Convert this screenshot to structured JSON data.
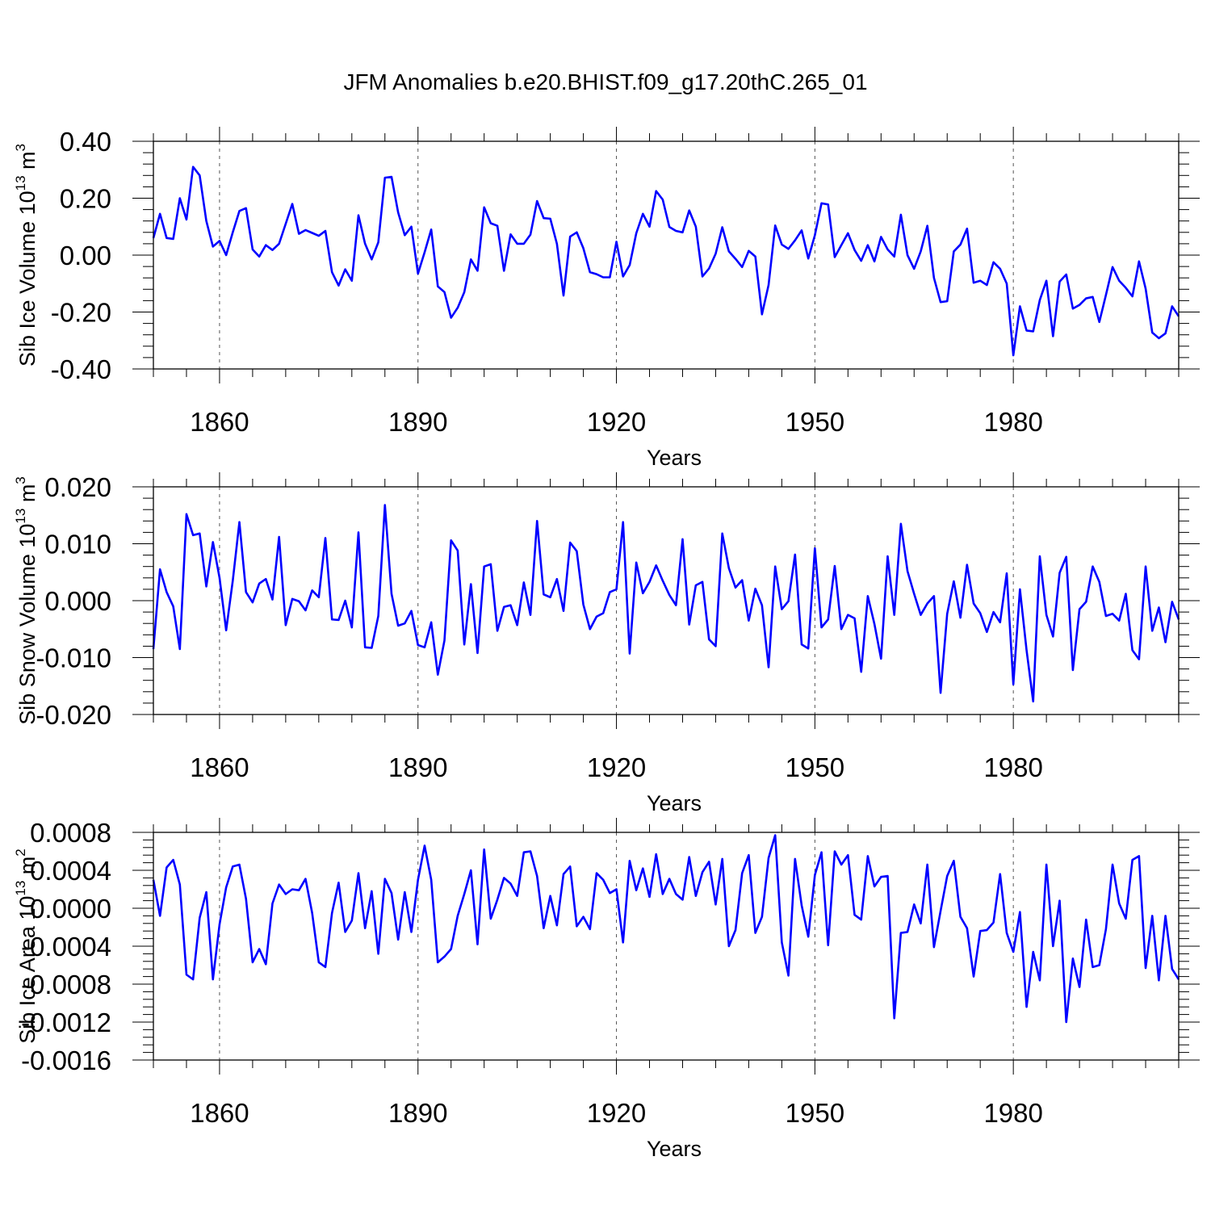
{
  "title": "JFM Anomalies b.e20.BHIST.f09_g17.20thC.265_01",
  "colors": {
    "series": "#0000ff",
    "axis": "#000000",
    "grid": "#555555"
  },
  "chart_data": [
    {
      "type": "line",
      "name": "ice-volume",
      "ylabel_main": "Sib Ice Volume 10",
      "ylabel_exp": "13",
      "ylabel_unit": " m",
      "ylabel_unit_exp": "3",
      "xlabel": "Years",
      "xlim": [
        1850,
        2005
      ],
      "ylim": [
        -0.4,
        0.4
      ],
      "yticks": [
        -0.4,
        -0.2,
        0.0,
        0.2,
        0.4
      ],
      "ytick_labels": [
        "-0.40",
        "-0.20",
        "0.00",
        "0.20",
        "0.40"
      ],
      "xticks": [
        1860,
        1890,
        1920,
        1950,
        1980
      ],
      "xtick_labels": [
        "1860",
        "1890",
        "1920",
        "1950",
        "1980"
      ],
      "grid": "vertical dashed at major x ticks",
      "x_start": 1850,
      "values": [
        0.06,
        0.145,
        0.06,
        0.057,
        0.2,
        0.125,
        0.31,
        0.28,
        0.12,
        0.03,
        0.05,
        0.0,
        0.08,
        0.155,
        0.165,
        0.02,
        -0.005,
        0.035,
        0.018,
        0.04,
        0.11,
        0.18,
        0.075,
        0.088,
        0.078,
        0.068,
        0.085,
        -0.06,
        -0.107,
        -0.05,
        -0.09,
        0.14,
        0.04,
        -0.015,
        0.045,
        0.272,
        0.275,
        0.15,
        0.07,
        0.1,
        -0.065,
        0.01,
        0.09,
        -0.11,
        -0.13,
        -0.22,
        -0.185,
        -0.13,
        -0.015,
        -0.055,
        0.168,
        0.112,
        0.103,
        -0.055,
        0.073,
        0.04,
        0.04,
        0.072,
        0.19,
        0.13,
        0.128,
        0.04,
        -0.142,
        0.065,
        0.08,
        0.024,
        -0.06,
        -0.067,
        -0.078,
        -0.078,
        0.047,
        -0.075,
        -0.035,
        0.077,
        0.145,
        0.1,
        0.225,
        0.195,
        0.099,
        0.085,
        0.08,
        0.157,
        0.1,
        -0.075,
        -0.047,
        0.005,
        0.098,
        0.013,
        -0.013,
        -0.042,
        0.015,
        -0.005,
        -0.208,
        -0.105,
        0.104,
        0.037,
        0.022,
        0.052,
        0.087,
        -0.012,
        0.07,
        0.182,
        0.178,
        -0.007,
        0.035,
        0.077,
        0.018,
        -0.02,
        0.035,
        -0.022,
        0.064,
        0.02,
        -0.005,
        0.142,
        0.0,
        -0.048,
        0.013,
        0.103,
        -0.08,
        -0.165,
        -0.162,
        0.013,
        0.037,
        0.093,
        -0.097,
        -0.09,
        -0.105,
        -0.025,
        -0.048,
        -0.1,
        -0.352,
        -0.18,
        -0.265,
        -0.268,
        -0.158,
        -0.09,
        -0.285,
        -0.093,
        -0.068,
        -0.188,
        -0.175,
        -0.152,
        -0.147,
        -0.235,
        -0.14,
        -0.042,
        -0.09,
        -0.115,
        -0.145,
        -0.022,
        -0.118,
        -0.272,
        -0.292,
        -0.275,
        -0.18,
        -0.215
      ]
    },
    {
      "type": "line",
      "name": "snow-volume",
      "ylabel_main": "Sib Snow Volume 10",
      "ylabel_exp": "13",
      "ylabel_unit": " m",
      "ylabel_unit_exp": "3",
      "xlabel": "Years",
      "xlim": [
        1850,
        2005
      ],
      "ylim": [
        -0.02,
        0.02
      ],
      "yticks": [
        -0.02,
        -0.01,
        0.0,
        0.01,
        0.02
      ],
      "ytick_labels": [
        "-0.020",
        "-0.010",
        "0.000",
        "0.010",
        "0.020"
      ],
      "xticks": [
        1860,
        1890,
        1920,
        1950,
        1980
      ],
      "xtick_labels": [
        "1860",
        "1890",
        "1920",
        "1950",
        "1980"
      ],
      "grid": "vertical dashed at major x ticks",
      "x_start": 1850,
      "values": [
        -0.0085,
        0.0055,
        0.0015,
        -0.001,
        -0.0085,
        0.0152,
        0.0115,
        0.0118,
        0.0025,
        0.0103,
        0.004,
        -0.0052,
        0.0035,
        0.0138,
        0.0015,
        -0.0003,
        0.003,
        0.0038,
        0.0002,
        0.0112,
        -0.0043,
        0.0003,
        -0.0001,
        -0.0017,
        0.0018,
        0.0006,
        0.011,
        -0.0033,
        -0.0034,
        0.0,
        -0.0047,
        0.012,
        -0.0082,
        -0.0083,
        -0.0027,
        0.0168,
        0.0012,
        -0.0044,
        -0.004,
        -0.0018,
        -0.0078,
        -0.0082,
        -0.0038,
        -0.013,
        -0.007,
        0.0106,
        0.0088,
        -0.0077,
        0.0029,
        -0.0092,
        0.006,
        0.0064,
        -0.0053,
        -0.0011,
        -0.0008,
        -0.0043,
        0.0032,
        -0.0025,
        0.014,
        0.0011,
        0.0006,
        0.0038,
        -0.0018,
        0.0102,
        0.0087,
        -0.0007,
        -0.005,
        -0.0028,
        -0.0022,
        0.0015,
        0.002,
        0.0138,
        -0.0093,
        0.0067,
        0.0013,
        0.0033,
        0.0062,
        0.0035,
        0.001,
        -0.0008,
        0.0108,
        -0.0042,
        0.0027,
        0.0033,
        -0.0068,
        -0.008,
        0.0118,
        0.0057,
        0.0023,
        0.0036,
        -0.0035,
        0.0021,
        -0.0008,
        -0.0117,
        0.006,
        -0.0015,
        -0.0001,
        0.0081,
        -0.0077,
        -0.0084,
        0.0092,
        -0.0047,
        -0.0033,
        0.0061,
        -0.005,
        -0.0025,
        -0.0031,
        -0.0125,
        0.0008,
        -0.0041,
        -0.0102,
        0.0078,
        -0.0025,
        0.0135,
        0.0052,
        0.0012,
        -0.0025,
        -0.0005,
        0.0008,
        -0.0162,
        -0.0023,
        0.0034,
        -0.003,
        0.0063,
        -0.0005,
        -0.0022,
        -0.0055,
        -0.002,
        -0.0038,
        0.0048,
        -0.0147,
        0.002,
        -0.0087,
        -0.0177,
        0.0078,
        -0.0025,
        -0.0063,
        0.0049,
        0.0077,
        -0.0122,
        -0.0015,
        -0.0002,
        0.006,
        0.0033,
        -0.0027,
        -0.0023,
        -0.0035,
        0.0012,
        -0.0087,
        -0.0103,
        0.006,
        -0.0053,
        -0.0012,
        -0.0073,
        -0.0002,
        -0.0033
      ]
    },
    {
      "type": "line",
      "name": "ice-area",
      "ylabel_main": "Sib Ice Area 10",
      "ylabel_exp": "13",
      "ylabel_unit": " m",
      "ylabel_unit_exp": "2",
      "xlabel": "Years",
      "xlim": [
        1850,
        2005
      ],
      "ylim": [
        -0.0016,
        0.0008
      ],
      "yticks": [
        -0.0016,
        -0.0012,
        -0.0008,
        -0.0004,
        0.0,
        0.0004,
        0.0008
      ],
      "ytick_labels": [
        "-0.0016",
        "-0.0012",
        "-0.0008",
        "-0.0004",
        "0.0000",
        "0.0004",
        "0.0008"
      ],
      "xticks": [
        1860,
        1890,
        1920,
        1950,
        1980
      ],
      "xtick_labels": [
        "1860",
        "1890",
        "1920",
        "1950",
        "1980"
      ],
      "grid": "vertical dashed at major x ticks",
      "x_start": 1850,
      "values": [
        0.0003,
        -8e-05,
        0.00043,
        0.00051,
        0.00025,
        -0.0007,
        -0.00075,
        -0.0001,
        0.00017,
        -0.00075,
        -0.00017,
        0.00022,
        0.00044,
        0.00046,
        0.0001,
        -0.00057,
        -0.00043,
        -0.00059,
        5e-05,
        0.00025,
        0.00015,
        0.0002,
        0.00019,
        0.00031,
        -5e-05,
        -0.00057,
        -0.00062,
        -5e-05,
        0.00027,
        -0.00025,
        -0.00013,
        0.00037,
        -0.00021,
        0.00018,
        -0.00048,
        0.00031,
        0.00016,
        -0.00033,
        0.00017,
        -0.00025,
        0.0003,
        0.00066,
        0.0003,
        -0.00057,
        -0.00051,
        -0.00043,
        -8e-05,
        0.00015,
        0.0004,
        -0.00038,
        0.00062,
        -0.00011,
        9e-05,
        0.00032,
        0.00026,
        0.00013,
        0.00059,
        0.0006,
        0.00034,
        -0.00021,
        0.00013,
        -0.00018,
        0.00036,
        0.00044,
        -0.00019,
        -9e-05,
        -0.00022,
        0.00037,
        0.0003,
        0.00016,
        0.0002,
        -0.00036,
        0.0005,
        0.00019,
        0.00042,
        0.00012,
        0.00057,
        0.00015,
        0.00031,
        0.00015,
        9e-05,
        0.00054,
        0.00013,
        0.00038,
        0.00049,
        4e-05,
        0.00052,
        -0.0004,
        -0.00023,
        0.00037,
        0.00056,
        -0.00026,
        -9e-05,
        0.00053,
        0.00077,
        -0.00036,
        -0.00071,
        0.00052,
        3e-05,
        -0.0003,
        0.00035,
        0.00059,
        -0.00039,
        0.0006,
        0.00046,
        0.00056,
        -7e-05,
        -0.00012,
        0.00055,
        0.00023,
        0.00033,
        0.00034,
        -0.00116,
        -0.00026,
        -0.00025,
        4e-05,
        -0.00016,
        0.00046,
        -0.00041,
        -3e-05,
        0.00034,
        0.0005,
        -9e-05,
        -0.00021,
        -0.00072,
        -0.00024,
        -0.00023,
        -0.00015,
        0.00036,
        -0.00026,
        -0.00046,
        -4e-05,
        -0.00104,
        -0.00046,
        -0.00076,
        0.00046,
        -0.0004,
        8e-05,
        -0.0012,
        -0.00053,
        -0.00083,
        -0.00012,
        -0.00062,
        -0.0006,
        -0.00022,
        0.00046,
        5e-05,
        -0.00011,
        0.00051,
        0.00055,
        -0.00063,
        -8e-05,
        -0.00076,
        -8e-05,
        -0.00064,
        -0.00075
      ]
    }
  ]
}
